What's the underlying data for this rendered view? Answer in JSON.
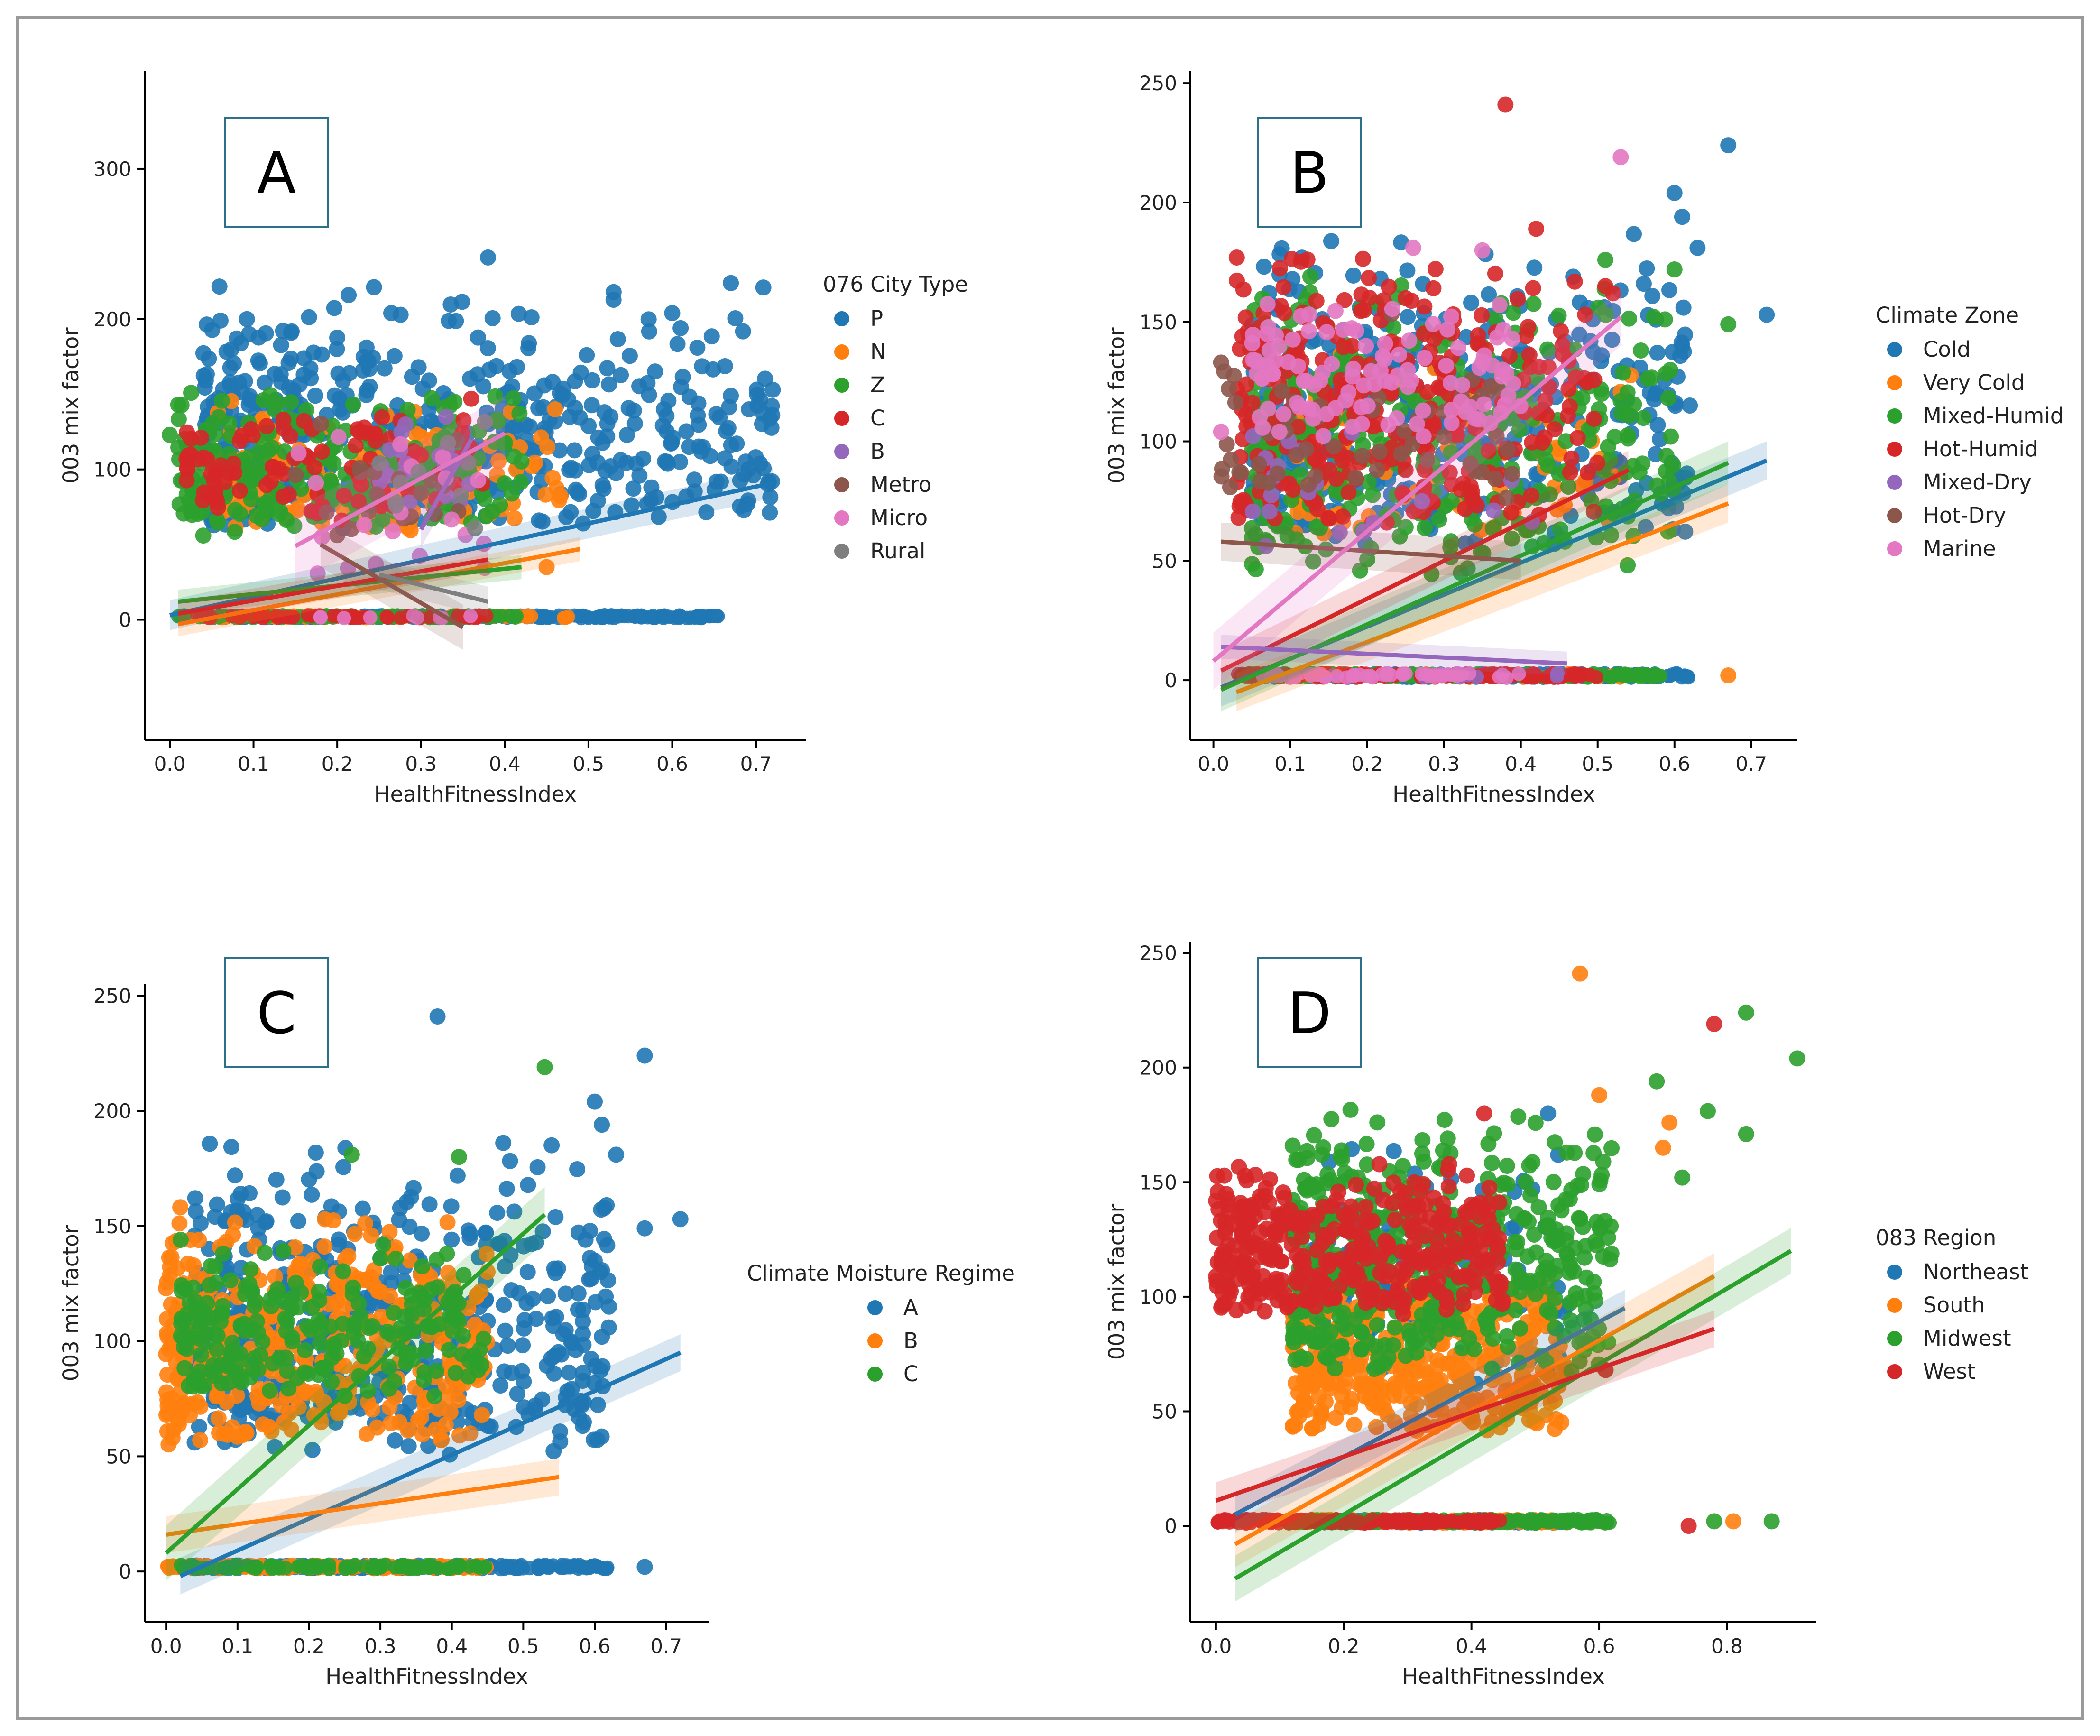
{
  "chart_data": [
    {
      "type": "scatter",
      "panel": "A",
      "xlabel": "HealthFitnessIndex",
      "ylabel": "003 mix factor",
      "xlim": [
        -0.03,
        0.76
      ],
      "ylim": [
        -80,
        365
      ],
      "xticks": [
        0.0,
        0.1,
        0.2,
        0.3,
        0.4,
        0.5,
        0.6,
        0.7
      ],
      "yticks": [
        0,
        100,
        200,
        300
      ],
      "legend_title": "076 City Type",
      "legend_position": "right",
      "series": [
        {
          "name": "P",
          "color": "#1f77b4",
          "cluster": {
            "xmin": 0.04,
            "xmax": 0.72,
            "ymin": 30,
            "ymax": 225,
            "n": 520,
            "zero_band": true
          },
          "points": [
            [
              0.67,
              224
            ],
            [
              0.53,
              218
            ],
            [
              0.6,
              204
            ],
            [
              0.61,
              194
            ],
            [
              0.63,
              181
            ],
            [
              0.72,
              153
            ],
            [
              0.67,
              149
            ],
            [
              0.59,
              140
            ],
            [
              0.62,
              115
            ],
            [
              0.38,
              241
            ],
            [
              0.57,
              77
            ]
          ],
          "fit": [
            [
              0.0,
              3
            ],
            [
              0.72,
              91
            ]
          ],
          "band": 10
        },
        {
          "name": "N",
          "color": "#ff7f0e",
          "cluster": {
            "xmin": 0.05,
            "xmax": 0.48,
            "ymin": 40,
            "ymax": 150,
            "n": 140,
            "zero_band": true
          },
          "points": [
            [
              0.46,
              140
            ],
            [
              0.45,
              35
            ]
          ],
          "fit": [
            [
              0.01,
              -3
            ],
            [
              0.49,
              47
            ]
          ],
          "band": 8
        },
        {
          "name": "Z",
          "color": "#2ca02c",
          "cluster": {
            "xmin": 0.01,
            "xmax": 0.42,
            "ymin": 40,
            "ymax": 160,
            "n": 220,
            "zero_band": true
          },
          "points": [
            [
              0.04,
              56
            ],
            [
              0.0,
              123
            ]
          ],
          "fit": [
            [
              0.01,
              12
            ],
            [
              0.42,
              35
            ]
          ],
          "band": 8
        },
        {
          "name": "C",
          "color": "#d62728",
          "cluster": {
            "xmin": 0.02,
            "xmax": 0.38,
            "ymin": 50,
            "ymax": 150,
            "n": 100,
            "zero_band": true
          },
          "points": [
            [
              0.02,
              107
            ],
            [
              0.36,
              147
            ]
          ],
          "fit": [
            [
              0.01,
              4
            ],
            [
              0.38,
              40
            ]
          ],
          "band": 8
        },
        {
          "name": "B",
          "color": "#9467bd",
          "cluster": {
            "xmin": 0.25,
            "xmax": 0.36,
            "ymin": 60,
            "ymax": 150,
            "n": 20,
            "zero_band": false
          },
          "points": [
            [
              0.33,
              135
            ]
          ],
          "fit": [
            [
              0.3,
              60
            ],
            [
              0.36,
              120
            ]
          ],
          "band": 12
        },
        {
          "name": "Metro",
          "color": "#8c564b",
          "cluster": {
            "xmin": 0.15,
            "xmax": 0.35,
            "ymin": 40,
            "ymax": 140,
            "n": 20,
            "zero_band": false
          },
          "points": [],
          "fit": [
            [
              0.18,
              50
            ],
            [
              0.35,
              -5
            ]
          ],
          "band": 15
        },
        {
          "name": "Micro",
          "color": "#e377c2",
          "cluster": {
            "xmin": 0.15,
            "xmax": 0.38,
            "ymin": 0,
            "ymax": 140,
            "n": 20,
            "zero_band": true
          },
          "points": [],
          "fit": [
            [
              0.15,
              49
            ],
            [
              0.4,
              124
            ]
          ],
          "band": 25
        },
        {
          "name": "Rural",
          "color": "#7f7f7f",
          "cluster": {
            "xmin": 0.25,
            "xmax": 0.38,
            "ymin": 40,
            "ymax": 140,
            "n": 10,
            "zero_band": false
          },
          "points": [],
          "fit": [
            [
              0.25,
              30
            ],
            [
              0.38,
              12
            ]
          ],
          "band": 10
        }
      ]
    },
    {
      "type": "scatter",
      "panel": "B",
      "xlabel": "HealthFitnessIndex",
      "ylabel": "003 mix factor",
      "xlim": [
        -0.03,
        0.76
      ],
      "ylim": [
        -25,
        255
      ],
      "xticks": [
        0.0,
        0.1,
        0.2,
        0.3,
        0.4,
        0.5,
        0.6,
        0.7
      ],
      "yticks": [
        0,
        50,
        100,
        150,
        200,
        250
      ],
      "legend_title": "Climate Zone",
      "legend_position": "right",
      "series": [
        {
          "name": "Cold",
          "color": "#1f77b4",
          "cluster": {
            "xmin": 0.05,
            "xmax": 0.62,
            "ymin": 30,
            "ymax": 190,
            "n": 380,
            "zero_band": true
          },
          "points": [
            [
              0.67,
              224
            ],
            [
              0.6,
              204
            ],
            [
              0.61,
              194
            ],
            [
              0.63,
              181
            ],
            [
              0.72,
              153
            ],
            [
              0.62,
              115
            ],
            [
              0.61,
              140
            ],
            [
              0.56,
              166
            ]
          ],
          "fit": [
            [
              0.01,
              -3
            ],
            [
              0.72,
              92
            ]
          ],
          "band": 8
        },
        {
          "name": "Very Cold",
          "color": "#ff7f0e",
          "cluster": {
            "xmin": 0.1,
            "xmax": 0.55,
            "ymin": 40,
            "ymax": 150,
            "n": 80,
            "zero_band": true
          },
          "points": [
            [
              0.67,
              2
            ]
          ],
          "fit": [
            [
              0.03,
              -5
            ],
            [
              0.67,
              74
            ]
          ],
          "band": 8
        },
        {
          "name": "Mixed-Humid",
          "color": "#2ca02c",
          "cluster": {
            "xmin": 0.05,
            "xmax": 0.6,
            "ymin": 20,
            "ymax": 180,
            "n": 360,
            "zero_band": true
          },
          "points": [
            [
              0.6,
              172
            ],
            [
              0.67,
              149
            ],
            [
              0.51,
              176
            ]
          ],
          "fit": [
            [
              0.01,
              -4
            ],
            [
              0.67,
              91
            ]
          ],
          "band": 9
        },
        {
          "name": "Hot-Humid",
          "color": "#d62728",
          "cluster": {
            "xmin": 0.03,
            "xmax": 0.5,
            "ymin": 40,
            "ymax": 190,
            "n": 300,
            "zero_band": true
          },
          "points": [
            [
              0.38,
              241
            ],
            [
              0.42,
              189
            ],
            [
              0.51,
              165
            ],
            [
              0.52,
              162
            ]
          ],
          "fit": [
            [
              0.01,
              4
            ],
            [
              0.54,
              88
            ]
          ],
          "band": 8
        },
        {
          "name": "Mixed-Dry",
          "color": "#9467bd",
          "cluster": {
            "xmin": 0.05,
            "xmax": 0.45,
            "ymin": 40,
            "ymax": 130,
            "n": 20,
            "zero_band": true
          },
          "points": [],
          "fit": [
            [
              0.01,
              14
            ],
            [
              0.46,
              7
            ]
          ],
          "band": 5
        },
        {
          "name": "Hot-Dry",
          "color": "#8c564b",
          "cluster": {
            "xmin": 0.01,
            "xmax": 0.4,
            "ymin": 60,
            "ymax": 160,
            "n": 60,
            "zero_band": false
          },
          "points": [
            [
              0.01,
              133
            ],
            [
              0.02,
              122
            ]
          ],
          "fit": [
            [
              0.01,
              58
            ],
            [
              0.4,
              50
            ]
          ],
          "band": 8
        },
        {
          "name": "Marine",
          "color": "#e377c2",
          "cluster": {
            "xmin": 0.05,
            "xmax": 0.4,
            "ymin": 90,
            "ymax": 160,
            "n": 110,
            "zero_band": true
          },
          "points": [
            [
              0.53,
              219
            ],
            [
              0.26,
              181
            ],
            [
              0.35,
              180
            ],
            [
              0.01,
              104
            ],
            [
              0.07,
              145
            ]
          ],
          "fit": [
            [
              0.0,
              8
            ],
            [
              0.53,
              152
            ]
          ],
          "band": 12
        }
      ]
    },
    {
      "type": "scatter",
      "panel": "C",
      "xlabel": "HealthFitnessIndex",
      "ylabel": "003 mix factor",
      "xlim": [
        -0.03,
        0.76
      ],
      "ylim": [
        -22,
        255
      ],
      "xticks": [
        0.0,
        0.1,
        0.2,
        0.3,
        0.4,
        0.5,
        0.6,
        0.7
      ],
      "yticks": [
        0,
        50,
        100,
        150,
        200,
        250
      ],
      "legend_title": "Climate Moisture Regime",
      "legend_position": "right",
      "series": [
        {
          "name": "A",
          "color": "#1f77b4",
          "cluster": {
            "xmin": 0.04,
            "xmax": 0.62,
            "ymin": 25,
            "ymax": 190,
            "n": 520,
            "zero_band": true
          },
          "points": [
            [
              0.38,
              241
            ],
            [
              0.67,
              224
            ],
            [
              0.6,
              204
            ],
            [
              0.61,
              194
            ],
            [
              0.63,
              181
            ],
            [
              0.72,
              153
            ],
            [
              0.67,
              149
            ],
            [
              0.62,
              115
            ],
            [
              0.04,
              56
            ],
            [
              0.67,
              2
            ]
          ],
          "fit": [
            [
              0.02,
              -2
            ],
            [
              0.72,
              95
            ]
          ],
          "band": 8
        },
        {
          "name": "B",
          "color": "#ff7f0e",
          "cluster": {
            "xmin": 0.0,
            "xmax": 0.45,
            "ymin": 35,
            "ymax": 160,
            "n": 360,
            "zero_band": true
          },
          "points": [
            [
              0.0,
              123
            ],
            [
              0.01,
              107
            ]
          ],
          "fit": [
            [
              0.0,
              16
            ],
            [
              0.55,
              41
            ]
          ],
          "band": 8
        },
        {
          "name": "C",
          "color": "#2ca02c",
          "cluster": {
            "xmin": 0.02,
            "xmax": 0.45,
            "ymin": 60,
            "ymax": 150,
            "n": 220,
            "zero_band": true
          },
          "points": [
            [
              0.53,
              219
            ],
            [
              0.26,
              181
            ],
            [
              0.41,
              180
            ]
          ],
          "fit": [
            [
              0.0,
              8
            ],
            [
              0.53,
              155
            ]
          ],
          "band": 12
        }
      ]
    },
    {
      "type": "scatter",
      "panel": "D",
      "xlabel": "HealthFitnessIndex",
      "ylabel": "003 mix factor",
      "xlim": [
        -0.04,
        0.94
      ],
      "ylim": [
        -42,
        255
      ],
      "xticks": [
        0.0,
        0.2,
        0.4,
        0.6,
        0.8
      ],
      "yticks": [
        0,
        50,
        100,
        150,
        200,
        250
      ],
      "legend_title": "083 Region",
      "legend_position": "right",
      "series": [
        {
          "name": "Northeast",
          "color": "#1f77b4",
          "cluster": {
            "xmin": 0.15,
            "xmax": 0.55,
            "ymin": 35,
            "ymax": 170,
            "n": 120,
            "zero_band": true
          },
          "points": [
            [
              0.52,
              180
            ]
          ],
          "fit": [
            [
              0.03,
              5
            ],
            [
              0.64,
              95
            ]
          ],
          "band": 8
        },
        {
          "name": "South",
          "color": "#ff7f0e",
          "cluster": {
            "xmin": 0.12,
            "xmax": 0.55,
            "ymin": 25,
            "ymax": 120,
            "n": 380,
            "zero_band": true
          },
          "points": [
            [
              0.57,
              241
            ],
            [
              0.71,
              176
            ],
            [
              0.6,
              188
            ],
            [
              0.81,
              2
            ],
            [
              0.7,
              165
            ]
          ],
          "fit": [
            [
              0.03,
              -8
            ],
            [
              0.78,
              109
            ]
          ],
          "band": 10
        },
        {
          "name": "Midwest",
          "color": "#2ca02c",
          "cluster": {
            "xmin": 0.12,
            "xmax": 0.62,
            "ymin": 45,
            "ymax": 185,
            "n": 480,
            "zero_band": true
          },
          "points": [
            [
              0.83,
              224
            ],
            [
              0.91,
              204
            ],
            [
              0.69,
              194
            ],
            [
              0.83,
              171
            ],
            [
              0.87,
              2
            ],
            [
              0.78,
              2
            ],
            [
              0.73,
              152
            ],
            [
              0.77,
              181
            ]
          ],
          "fit": [
            [
              0.03,
              -23
            ],
            [
              0.9,
              120
            ]
          ],
          "band": 10
        },
        {
          "name": "West",
          "color": "#d62728",
          "cluster": {
            "xmin": 0.0,
            "xmax": 0.45,
            "ymin": 80,
            "ymax": 160,
            "n": 380,
            "zero_band": true
          },
          "points": [
            [
              0.78,
              219
            ],
            [
              0.42,
              180
            ],
            [
              0.61,
              68
            ],
            [
              0.74,
              0
            ]
          ],
          "fit": [
            [
              0.0,
              11
            ],
            [
              0.78,
              86
            ]
          ],
          "band": 8
        }
      ]
    }
  ]
}
